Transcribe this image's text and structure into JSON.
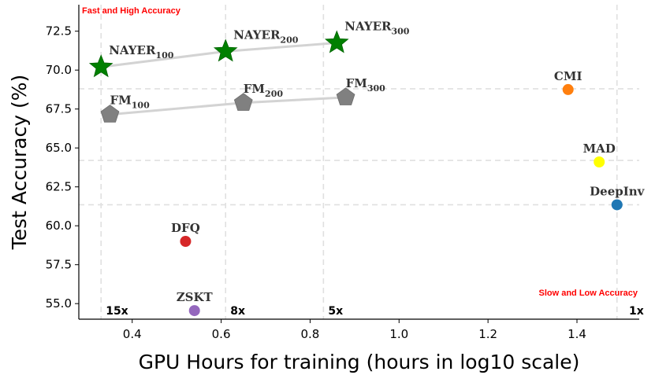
{
  "chart_data": {
    "type": "scatter",
    "xlabel": "GPU Hours for training (hours in log10 scale)",
    "ylabel": "Test Accuracy (%)",
    "xlim": [
      0.28,
      1.54
    ],
    "ylim": [
      54.0,
      74.2
    ],
    "x_ticks": [
      0.4,
      0.6,
      0.8,
      1.0,
      1.2,
      1.4
    ],
    "x_tick_labels": [
      "0.4",
      "0.6",
      "0.8",
      "1.0",
      "1.2",
      "1.4"
    ],
    "y_ticks": [
      55.0,
      57.5,
      60.0,
      62.5,
      65.0,
      67.5,
      70.0,
      72.5
    ],
    "y_tick_labels": [
      "55.0",
      "57.5",
      "60.0",
      "62.5",
      "65.0",
      "67.5",
      "70.0",
      "72.5"
    ],
    "grid": false,
    "corner_labels": {
      "top_left": "Fast and High Accuracy",
      "bottom_right": "Slow and Low Accuracy"
    },
    "speedup_lines": [
      {
        "x": 0.33,
        "label": "15x"
      },
      {
        "x": 0.61,
        "label": "8x"
      },
      {
        "x": 0.83,
        "label": "5x"
      },
      {
        "x": 1.49,
        "label": "1x"
      }
    ],
    "reference_lines_y": [
      68.8,
      64.2,
      61.35
    ],
    "series": [
      {
        "name": "NAYER",
        "marker": "star",
        "color": "#008000",
        "connected": true,
        "points": [
          {
            "base": "NAYER",
            "sub": "100",
            "x": 0.33,
            "y": 70.2
          },
          {
            "base": "NAYER",
            "sub": "200",
            "x": 0.61,
            "y": 71.2
          },
          {
            "base": "NAYER",
            "sub": "300",
            "x": 0.86,
            "y": 71.75
          }
        ]
      },
      {
        "name": "FM",
        "marker": "pentagon",
        "color": "#808080",
        "connected": true,
        "points": [
          {
            "base": "FM",
            "sub": "100",
            "x": 0.35,
            "y": 67.15
          },
          {
            "base": "FM",
            "sub": "200",
            "x": 0.65,
            "y": 67.9
          },
          {
            "base": "FM",
            "sub": "300",
            "x": 0.88,
            "y": 68.25
          }
        ]
      },
      {
        "name": "CMI",
        "marker": "circle",
        "color": "#ff7f0e",
        "connected": false,
        "points": [
          {
            "base": "CMI",
            "sub": "",
            "x": 1.38,
            "y": 68.75
          }
        ]
      },
      {
        "name": "MAD",
        "marker": "circle",
        "color": "#ffff00",
        "connected": false,
        "points": [
          {
            "base": "MAD",
            "sub": "",
            "x": 1.45,
            "y": 64.1
          }
        ]
      },
      {
        "name": "DeepInv",
        "marker": "circle",
        "color": "#1f77b4",
        "connected": false,
        "points": [
          {
            "base": "DeepInv",
            "sub": "",
            "x": 1.49,
            "y": 61.35
          }
        ]
      },
      {
        "name": "DFQ",
        "marker": "circle",
        "color": "#d62728",
        "connected": false,
        "points": [
          {
            "base": "DFQ",
            "sub": "",
            "x": 0.52,
            "y": 59.0
          }
        ]
      },
      {
        "name": "ZSKT",
        "marker": "circle",
        "color": "#9467bd",
        "connected": false,
        "points": [
          {
            "base": "ZSKT",
            "sub": "",
            "x": 0.54,
            "y": 54.55
          }
        ]
      }
    ]
  }
}
